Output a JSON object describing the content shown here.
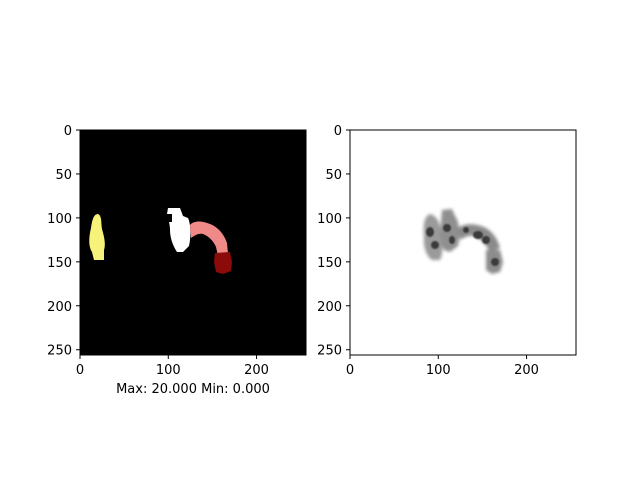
{
  "figure": {
    "caption": "Max: 20.000 Min: 0.000"
  },
  "panels": [
    {
      "name": "segmentation-label-map",
      "background": "#000000",
      "xlim": [
        0,
        256
      ],
      "ylim": [
        256,
        0
      ],
      "x_ticks": [
        "0",
        "100",
        "200"
      ],
      "y_ticks": [
        "0",
        "50",
        "100",
        "150",
        "200",
        "250"
      ],
      "region_colors": [
        "#f7f27a",
        "#ffffff",
        "#f08a88",
        "#8b0a0a"
      ]
    },
    {
      "name": "grayscale-intensity-map",
      "background": "#ffffff",
      "xlim": [
        0,
        256
      ],
      "ylim": [
        256,
        0
      ],
      "x_ticks": [
        "0",
        "100",
        "200"
      ],
      "y_ticks": [
        "0",
        "50",
        "100",
        "150",
        "200",
        "250"
      ]
    }
  ],
  "x_tick_values": [
    0,
    100,
    200
  ],
  "y_tick_values": [
    0,
    50,
    100,
    150,
    200,
    250
  ]
}
